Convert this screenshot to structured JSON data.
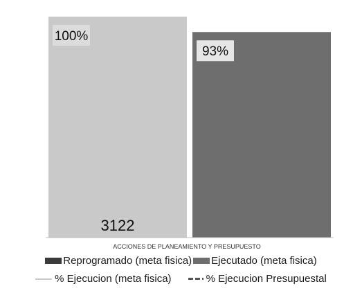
{
  "chart_data": {
    "type": "bar",
    "categories": [
      "ACCIONES DE PLANEAMIENTO Y PRESUPUESTO"
    ],
    "series": [
      {
        "name": "Reprogramado (meta fisica)",
        "values": [
          3122
        ],
        "data_label": "3122",
        "color": "#c9c9c9"
      },
      {
        "name": "Ejecutado (meta fisica)",
        "values": [
          2904
        ],
        "color": "#6e6e6e"
      }
    ],
    "percent_labels": [
      "100%",
      "93%"
    ],
    "line_series": [
      {
        "name": "% Ejecucion (meta fisica)",
        "style": "solid",
        "color": "#c8c8c8"
      },
      {
        "name": "% Ejecucion Presupuestal",
        "style": "dashed",
        "color": "#555555"
      }
    ],
    "ylim": [
      0,
      3200
    ],
    "legend_position": "bottom",
    "grid": false
  },
  "xlabel": "ACCIONES DE PLANEAMIENTO Y PRESUPUESTO"
}
